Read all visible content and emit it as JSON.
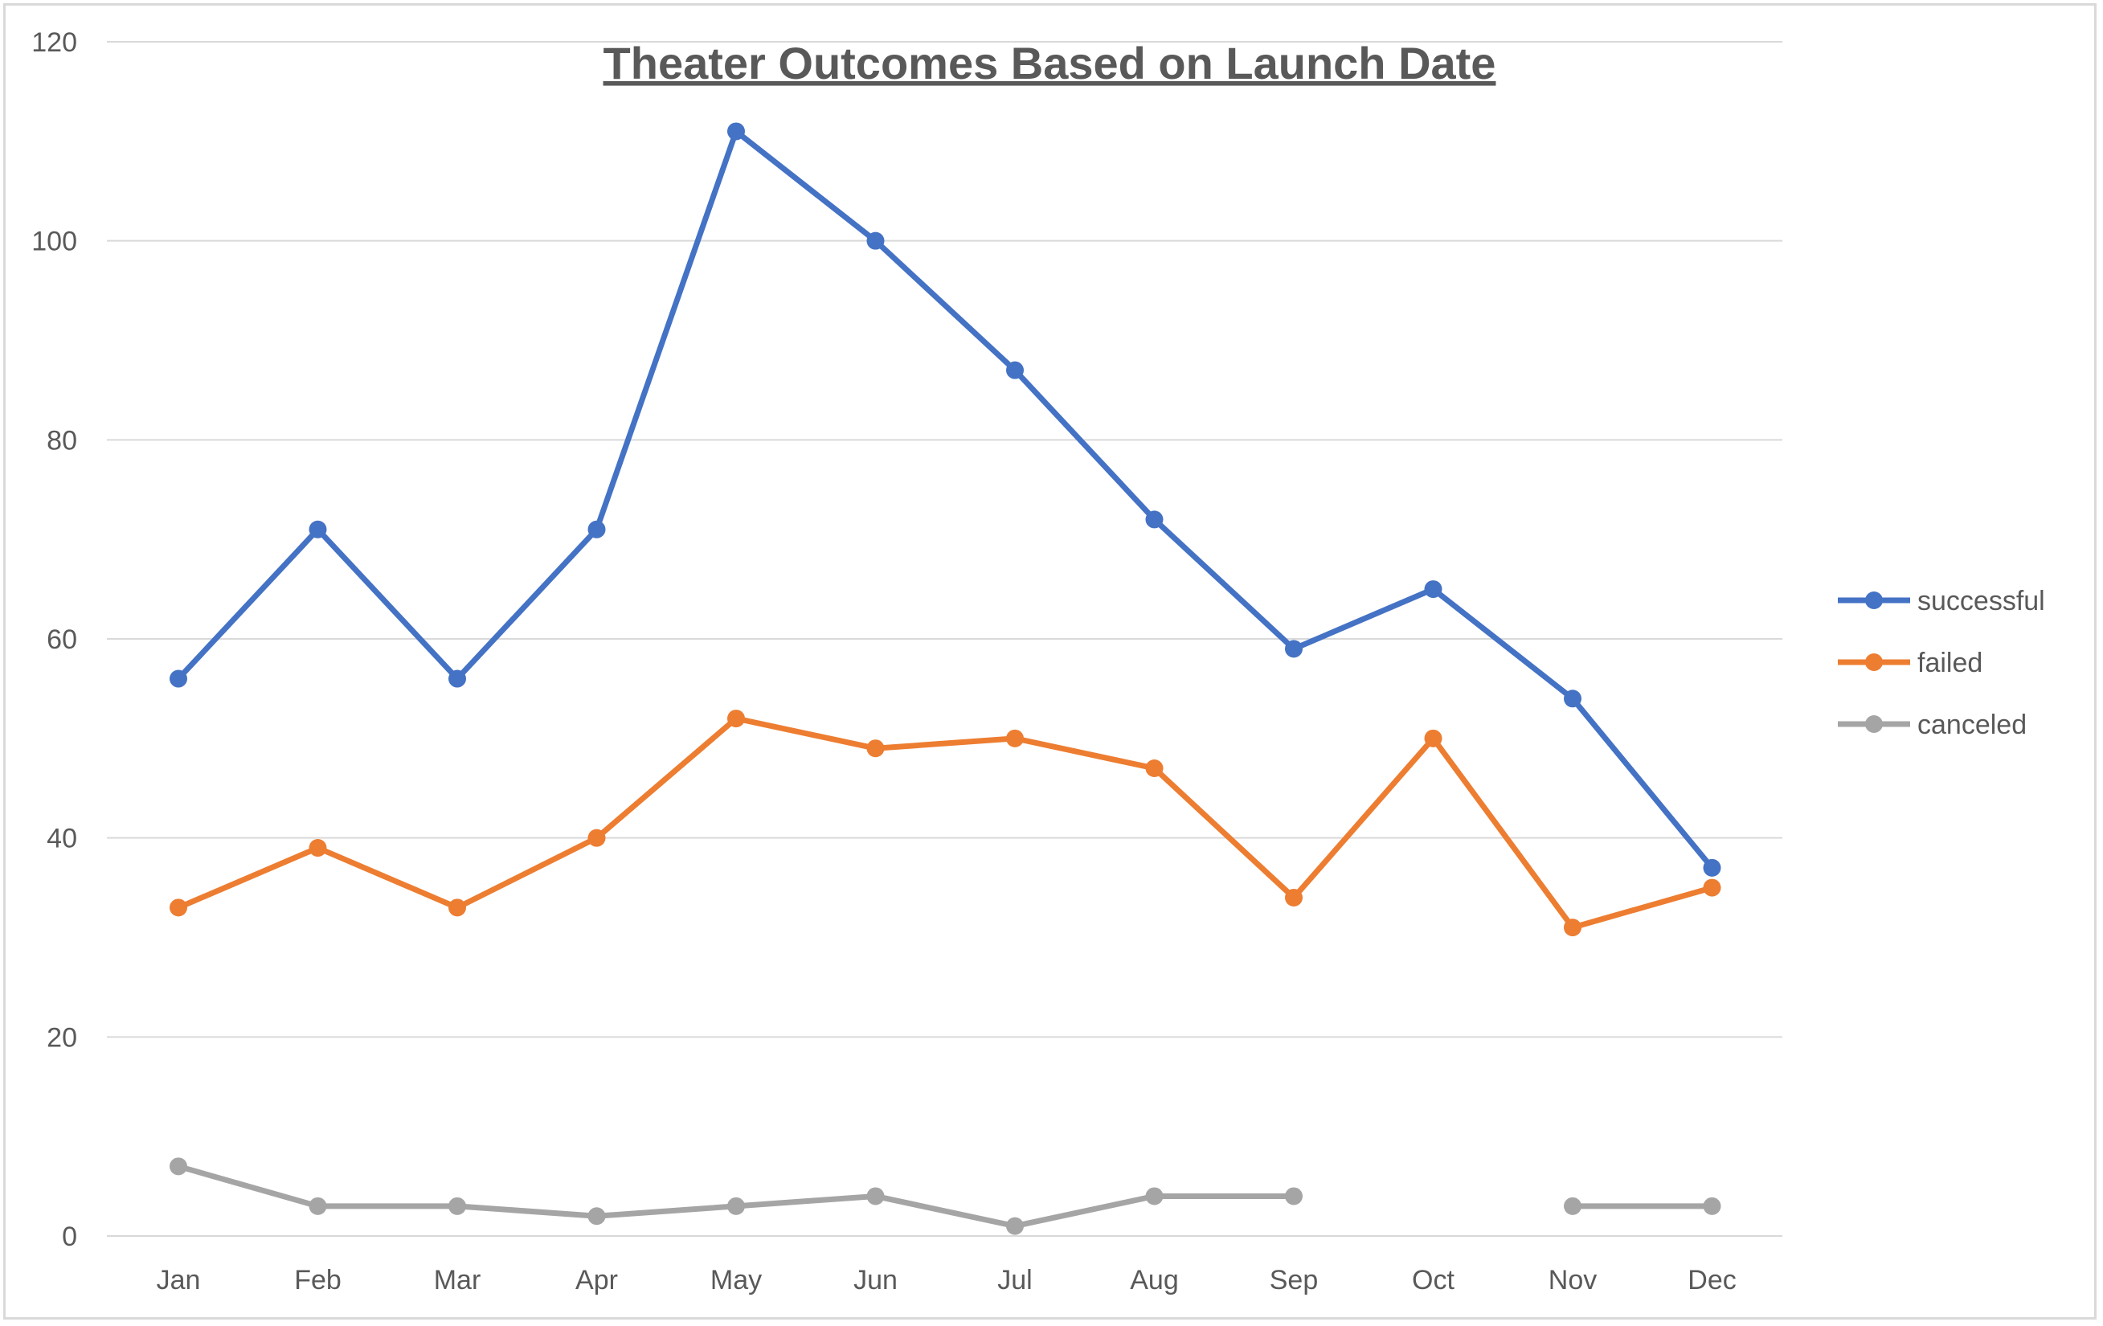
{
  "chart_data": {
    "type": "line",
    "title": "Theater Outcomes Based on Launch Date",
    "xlabel": "",
    "ylabel": "",
    "categories": [
      "Jan",
      "Feb",
      "Mar",
      "Apr",
      "May",
      "Jun",
      "Jul",
      "Aug",
      "Sep",
      "Oct",
      "Nov",
      "Dec"
    ],
    "ylim": [
      0,
      120
    ],
    "yticks": [
      0,
      20,
      40,
      60,
      80,
      100,
      120
    ],
    "grid": true,
    "legend": "right",
    "series": [
      {
        "name": "successful",
        "color": "#4472C4",
        "values": [
          56,
          71,
          56,
          71,
          111,
          100,
          87,
          72,
          59,
          65,
          54,
          37
        ]
      },
      {
        "name": "failed",
        "color": "#ED7D31",
        "values": [
          33,
          39,
          33,
          40,
          52,
          49,
          50,
          47,
          34,
          50,
          31,
          35
        ]
      },
      {
        "name": "canceled",
        "color": "#A5A5A5",
        "values": [
          7,
          3,
          3,
          2,
          3,
          4,
          1,
          4,
          4,
          null,
          3,
          3
        ]
      }
    ]
  }
}
